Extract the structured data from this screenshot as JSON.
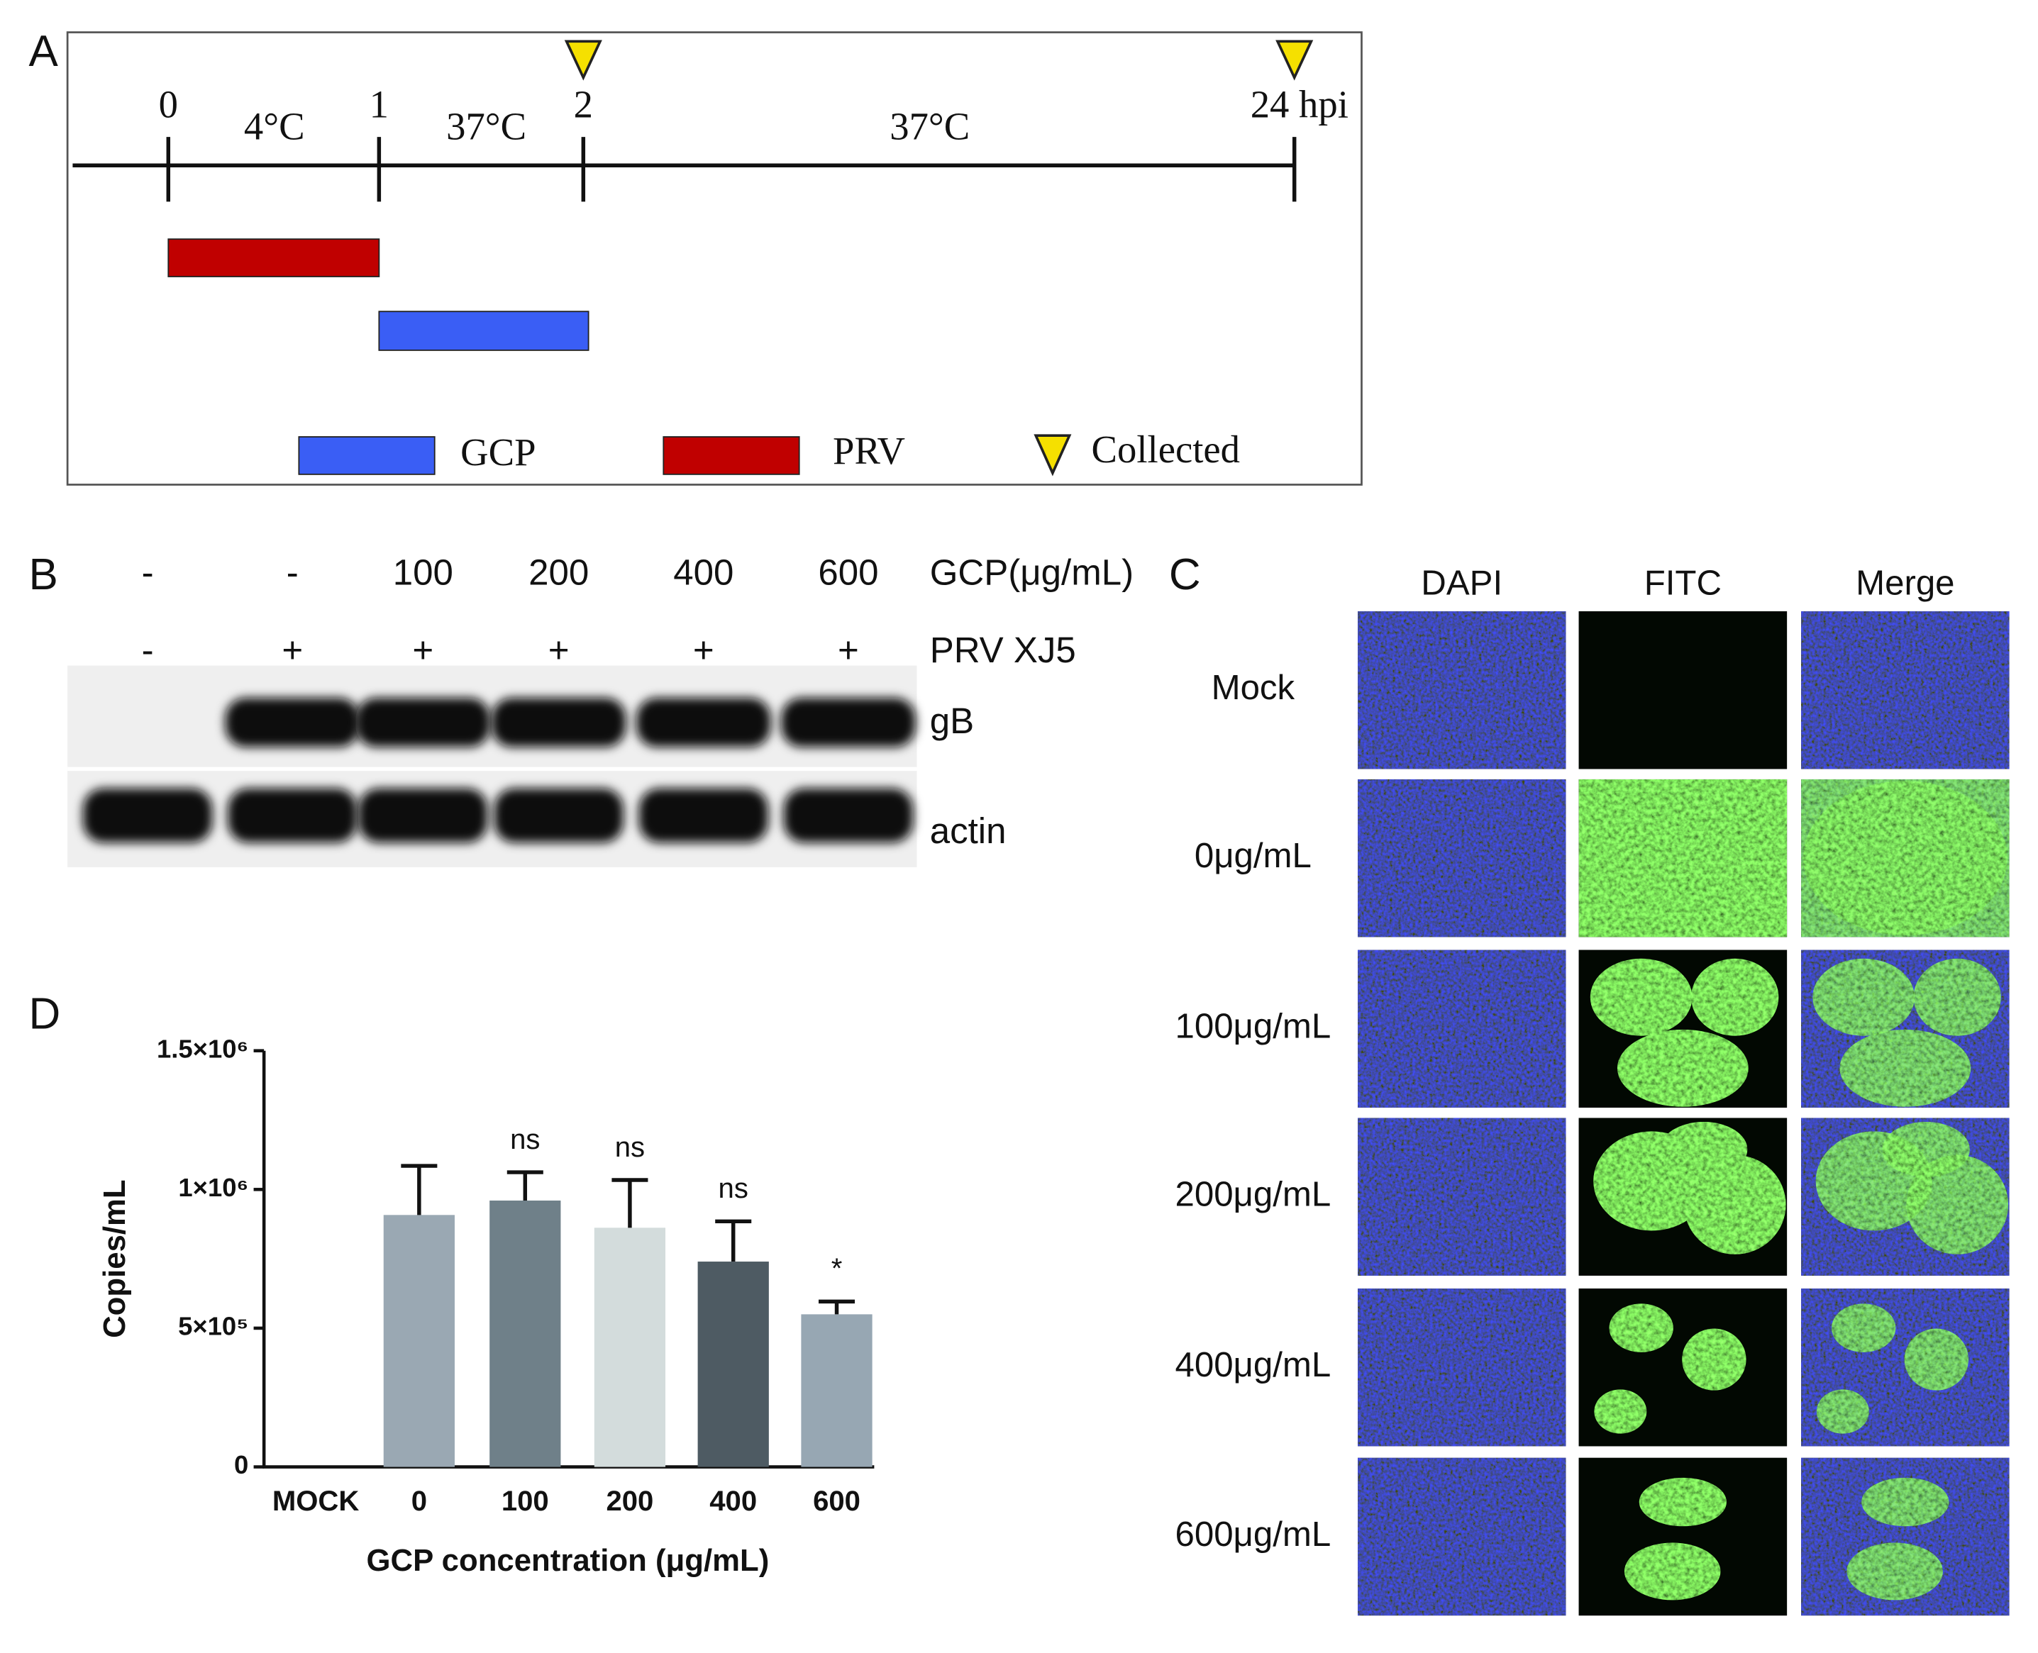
{
  "panels": {
    "a": "A",
    "b": "B",
    "c": "C",
    "d": "D"
  },
  "timeline": {
    "ticks": [
      "0",
      "1",
      "2",
      "24 hpi"
    ],
    "temperatures": [
      "4°C",
      "37°C",
      "37°C"
    ],
    "legend": [
      "GCP",
      "PRV",
      "Collected"
    ]
  },
  "blot": {
    "gcp_label": "GCP(μg/mL)",
    "gcp": [
      "-",
      "-",
      "100",
      "200",
      "400",
      "600"
    ],
    "prv_label": "PRV XJ5",
    "prv": [
      "-",
      "+",
      "+",
      "+",
      "+",
      "+"
    ],
    "bands": [
      "gB",
      "actin"
    ]
  },
  "imaging": {
    "channels": [
      "DAPI",
      "FITC",
      "Merge"
    ],
    "rows": [
      "Mock",
      "0μg/mL",
      "100μg/mL",
      "200μg/mL",
      "400μg/mL",
      "600μg/mL"
    ]
  },
  "chart_data": {
    "type": "bar",
    "xlabel": "GCP concentration (μg/mL)",
    "ylabel": "Copies/mL",
    "categories": [
      "MOCK",
      "0",
      "100",
      "200",
      "400",
      "600"
    ],
    "values": [
      0,
      908000,
      960000,
      862000,
      740000,
      550000
    ],
    "errors": [
      null,
      177000,
      102000,
      172000,
      145000,
      46000
    ],
    "annotations": [
      null,
      null,
      "ns",
      "ns",
      "ns",
      "*"
    ],
    "colors": [
      "#9aa8b3",
      "#9aa8b3",
      "#6f8089",
      "#d3dcdc",
      "#4e5b63",
      "#97a7b3"
    ],
    "ylim": [
      0,
      1500000
    ],
    "yticks": [
      0,
      {
        "value": 500000,
        "label": "5×10⁵"
      },
      {
        "value": 1000000,
        "label": "1×10⁶"
      },
      {
        "value": 1500000,
        "label": "1.5×10⁶"
      }
    ]
  }
}
